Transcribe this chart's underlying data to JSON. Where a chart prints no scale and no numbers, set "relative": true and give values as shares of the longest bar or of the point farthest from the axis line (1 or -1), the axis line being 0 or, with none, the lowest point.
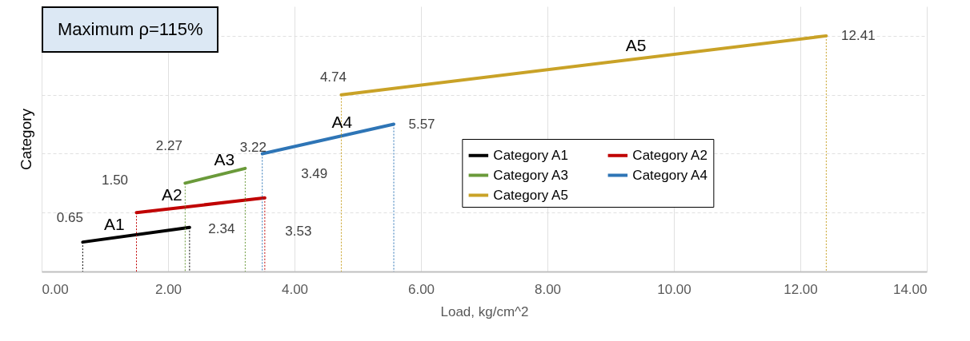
{
  "chart_data": {
    "type": "line",
    "relative": true,
    "xlabel": "Load, kg/cm^2",
    "ylabel": "Category",
    "xlim": [
      0,
      14
    ],
    "xticks": [
      {
        "value": 0,
        "label": "0.00"
      },
      {
        "value": 2,
        "label": "2.00"
      },
      {
        "value": 4,
        "label": "4.00"
      },
      {
        "value": 6,
        "label": "6.00"
      },
      {
        "value": 8,
        "label": "8.00"
      },
      {
        "value": 10,
        "label": "10.00"
      },
      {
        "value": 12,
        "label": "12.00"
      },
      {
        "value": 14,
        "label": "14.00"
      }
    ],
    "grid": true,
    "legend": "center",
    "line_style": "solid",
    "series": [
      {
        "name": "Category A1",
        "color": "#000000",
        "x": [
          0.65,
          2.34
        ],
        "values": [
          0.125,
          0.1875
        ]
      },
      {
        "name": "Category A2",
        "color": "#c00000",
        "x": [
          1.5,
          3.53
        ],
        "values": [
          0.25,
          0.3125
        ]
      },
      {
        "name": "Category A3",
        "color": "#6a9a3a",
        "x": [
          2.27,
          3.22
        ],
        "values": [
          0.375,
          0.4375
        ]
      },
      {
        "name": "Category A4",
        "color": "#2e75b6",
        "x": [
          3.49,
          5.57
        ],
        "values": [
          0.5,
          0.625
        ]
      },
      {
        "name": "Category A5",
        "color": "#c9a227",
        "x": [
          4.74,
          12.41
        ],
        "values": [
          0.75,
          1
        ]
      }
    ],
    "ref_lines": [
      {
        "axis": "x",
        "value": 0.65,
        "color": "#000000",
        "line_style": "dotted"
      },
      {
        "axis": "x",
        "value": 2.34,
        "color": "#000000",
        "line_style": "dotted"
      },
      {
        "axis": "x",
        "value": 1.5,
        "color": "#c00000",
        "line_style": "dotted"
      },
      {
        "axis": "x",
        "value": 3.53,
        "color": "#c00000",
        "line_style": "dotted"
      },
      {
        "axis": "x",
        "value": 2.27,
        "color": "#6a9a3a",
        "line_style": "dotted"
      },
      {
        "axis": "x",
        "value": 3.22,
        "color": "#6a9a3a",
        "line_style": "dotted"
      },
      {
        "axis": "x",
        "value": 3.49,
        "color": "#2e75b6",
        "line_style": "dotted"
      },
      {
        "axis": "x",
        "value": 5.57,
        "color": "#2e75b6",
        "line_style": "dotted"
      },
      {
        "axis": "x",
        "value": 4.74,
        "color": "#c9a227",
        "line_style": "dotted"
      },
      {
        "axis": "x",
        "value": 12.41,
        "color": "#c9a227",
        "line_style": "dotted"
      }
    ],
    "annotations": [
      "Maximum ρ=115%",
      {
        "text": "A1",
        "x": 1.15,
        "y": 0.144
      },
      {
        "text": "A2",
        "x": 2.06,
        "y": 0.267
      },
      {
        "text": "A3",
        "x": 2.89,
        "y": 0.416
      },
      {
        "text": "A4",
        "x": 4.75,
        "y": 0.576
      },
      {
        "text": "A5",
        "x": 9.4,
        "y": 0.9
      },
      {
        "text": "0.65",
        "x": 0.65,
        "y": 0.125
      },
      {
        "text": "2.34",
        "x": 2.34,
        "y": 0.1875
      },
      {
        "text": "1.50",
        "x": 1.5,
        "y": 0.25
      },
      {
        "text": "3.53",
        "x": 3.53,
        "y": 0.3125
      },
      {
        "text": "2.27",
        "x": 2.27,
        "y": 0.375
      },
      {
        "text": "3.22",
        "x": 3.22,
        "y": 0.4375
      },
      {
        "text": "3.49",
        "x": 3.49,
        "y": 0.5
      },
      {
        "text": "5.57",
        "x": 5.57,
        "y": 0.625
      },
      {
        "text": "4.74",
        "x": 4.74,
        "y": 0.75
      },
      {
        "text": "12.41",
        "x": 12.41,
        "y": 1
      }
    ]
  }
}
